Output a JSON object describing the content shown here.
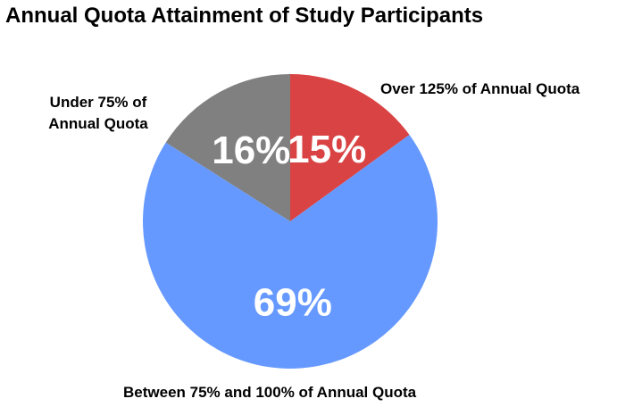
{
  "chart_data": {
    "type": "pie",
    "title": "Annual Quota Attainment of Study Participants",
    "categories": [
      "Over 125% of Annual Quota",
      "Between 75% and 100% of Annual Quota",
      "Under 75% of Annual Quota"
    ],
    "values": [
      15,
      69,
      16
    ],
    "value_labels": [
      "15%",
      "69%",
      "16%"
    ],
    "colors": [
      "#d94343",
      "#6699ff",
      "#808080"
    ]
  }
}
